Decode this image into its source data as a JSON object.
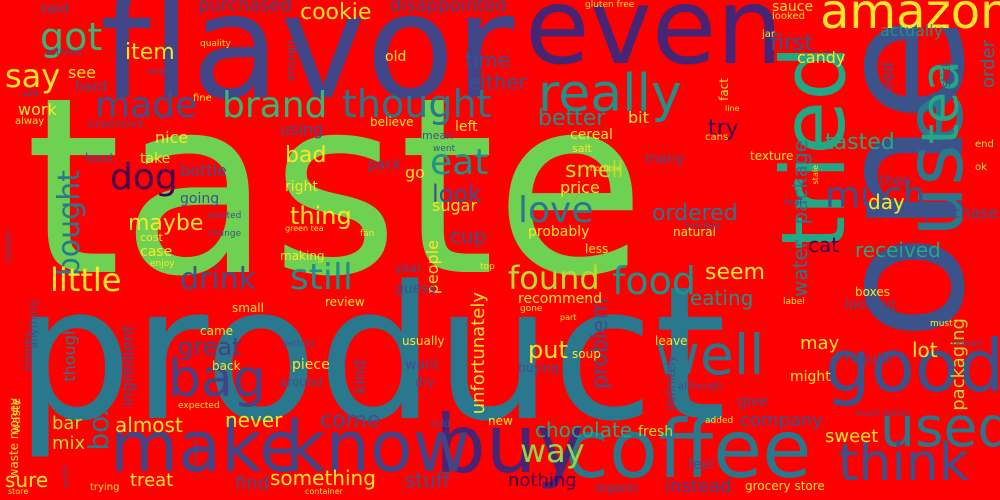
{
  "background_color": "#ff0000",
  "words": [
    {
      "text": "taste",
      "color": "#6fd152"
    },
    {
      "text": "product",
      "color": "#2a788e"
    },
    {
      "text": "one",
      "color": "#3b528b"
    },
    {
      "text": "flavor",
      "color": "#414487"
    },
    {
      "text": "even",
      "color": "#482475"
    },
    {
      "text": "tried",
      "color": "#22a884"
    },
    {
      "text": "use",
      "color": "#2a788e"
    },
    {
      "text": "coffee",
      "color": "#2a788e"
    },
    {
      "text": "buy",
      "color": "#482475"
    },
    {
      "text": "good",
      "color": "#3b528b"
    },
    {
      "text": "make",
      "color": "#414487"
    },
    {
      "text": "know",
      "color": "#414487"
    },
    {
      "text": "tea",
      "color": "#22a884"
    },
    {
      "text": "used",
      "color": "#2a788e"
    },
    {
      "text": "think",
      "color": "#3b528b"
    },
    {
      "text": "amazon",
      "color": "#fde725"
    },
    {
      "text": "really",
      "color": "#21918c"
    },
    {
      "text": "well",
      "color": "#2a788e"
    },
    {
      "text": "bag",
      "color": "#414487"
    },
    {
      "text": "made",
      "color": "#3b528b"
    },
    {
      "text": "brand",
      "color": "#35b779"
    },
    {
      "text": "thought",
      "color": "#2a788e"
    },
    {
      "text": "got",
      "color": "#35b779"
    },
    {
      "text": "say",
      "color": "#fde725"
    },
    {
      "text": "eat",
      "color": "#21918c"
    },
    {
      "text": "much",
      "color": "#3b528b"
    },
    {
      "text": "dog",
      "color": "#440154"
    },
    {
      "text": "love",
      "color": "#2a788e"
    },
    {
      "text": "bought",
      "color": "#2a788e"
    },
    {
      "text": "little",
      "color": "#fde725"
    },
    {
      "text": "drink",
      "color": "#3b528b"
    },
    {
      "text": "still",
      "color": "#21918c"
    },
    {
      "text": "found",
      "color": "#b5de2b"
    },
    {
      "text": "food",
      "color": "#21918c"
    },
    {
      "text": "way",
      "color": "#8fd744"
    },
    {
      "text": "box",
      "color": "#2a788e"
    },
    {
      "text": "great",
      "color": "#414487"
    },
    {
      "text": "item",
      "color": "#fde725"
    },
    {
      "text": "cookie",
      "color": "#fde725"
    },
    {
      "text": "tasted",
      "color": "#22a884"
    },
    {
      "text": "package",
      "color": "#2a788e"
    },
    {
      "text": "water",
      "color": "#2a788e"
    },
    {
      "text": "first",
      "color": "#3b528b"
    },
    {
      "text": "purchased",
      "color": "#414487"
    },
    {
      "text": "disappointed",
      "color": "#414487"
    },
    {
      "text": "time",
      "color": "#3b528b"
    },
    {
      "text": "either",
      "color": "#3b528b"
    },
    {
      "text": "better",
      "color": "#21918c"
    },
    {
      "text": "try",
      "color": "#440154"
    },
    {
      "text": "smell",
      "color": "#b5de2b"
    },
    {
      "text": "look",
      "color": "#3b528b"
    },
    {
      "text": "thing",
      "color": "#fde725"
    },
    {
      "text": "maybe",
      "color": "#fde725"
    },
    {
      "text": "bad",
      "color": "#fde725"
    },
    {
      "text": "ordered",
      "color": "#2a788e"
    },
    {
      "text": "day",
      "color": "#fde725"
    },
    {
      "text": "seem",
      "color": "#fde725"
    },
    {
      "text": "cat",
      "color": "#440154"
    },
    {
      "text": "received",
      "color": "#22a884"
    },
    {
      "text": "eating",
      "color": "#21918c"
    },
    {
      "text": "put",
      "color": "#fde725"
    },
    {
      "text": "problem",
      "color": "#3b528b"
    },
    {
      "text": "come",
      "color": "#3b528b"
    },
    {
      "text": "almost",
      "color": "#fde725"
    },
    {
      "text": "never",
      "color": "#fde725"
    },
    {
      "text": "chocolate",
      "color": "#22a884"
    },
    {
      "text": "company",
      "color": "#3b528b"
    },
    {
      "text": "sweet",
      "color": "#fde725"
    },
    {
      "text": "something",
      "color": "#fde725"
    },
    {
      "text": "stuff",
      "color": "#3b528b"
    },
    {
      "text": "sure",
      "color": "#fde725"
    },
    {
      "text": "mix",
      "color": "#b5de2b"
    },
    {
      "text": "bar",
      "color": "#b5de2b"
    },
    {
      "text": "treat",
      "color": "#fde725"
    },
    {
      "text": "find",
      "color": "#3b528b"
    },
    {
      "text": "nothing",
      "color": "#440154"
    },
    {
      "text": "instead",
      "color": "#414487"
    },
    {
      "text": "lot",
      "color": "#fde725"
    },
    {
      "text": "may",
      "color": "#fde725"
    },
    {
      "text": "order",
      "color": "#2a788e"
    },
    {
      "text": "packaging",
      "color": "#b5de2b"
    },
    {
      "text": "purchase",
      "color": "#3b528b"
    },
    {
      "text": "actually",
      "color": "#21918c"
    },
    {
      "text": "candy",
      "color": "#fde725"
    },
    {
      "text": "need",
      "color": "#3b528b"
    },
    {
      "text": "unfortunately",
      "color": "#fde725"
    },
    {
      "text": "ingredient",
      "color": "#3b528b"
    },
    {
      "text": "though",
      "color": "#2a788e"
    },
    {
      "text": "kind",
      "color": "#3b528b"
    },
    {
      "text": "people",
      "color": "#fde725"
    },
    {
      "text": "cup",
      "color": "#3b528b"
    },
    {
      "text": "sugar",
      "color": "#fde725"
    },
    {
      "text": "price",
      "color": "#fde725"
    },
    {
      "text": "probably",
      "color": "#fde725"
    },
    {
      "text": "many",
      "color": "#3b528b"
    },
    {
      "text": "rather",
      "color": "#3b528b"
    },
    {
      "text": "looking",
      "color": "#3b528b"
    },
    {
      "text": "regular",
      "color": "#3b528b"
    },
    {
      "text": "might",
      "color": "#fde725"
    },
    {
      "text": "recommend",
      "color": "#fde725"
    },
    {
      "text": "guess",
      "color": "#3b528b"
    },
    {
      "text": "want",
      "color": "#3b528b"
    },
    {
      "text": "piece",
      "color": "#fde725"
    },
    {
      "text": "give",
      "color": "#3b528b"
    },
    {
      "text": "feel",
      "color": "#3b528b"
    },
    {
      "text": "fresh",
      "color": "#b5de2b"
    },
    {
      "text": "organic",
      "color": "#3b528b"
    },
    {
      "text": "grocery store",
      "color": "#fde725"
    },
    {
      "text": "work",
      "color": "#fde725"
    },
    {
      "text": "see",
      "color": "#fde725"
    },
    {
      "text": "texture",
      "color": "#fde725"
    },
    {
      "text": "bottle",
      "color": "#3b528b"
    },
    {
      "text": "going",
      "color": "#3b528b"
    },
    {
      "text": "right",
      "color": "#fde725"
    },
    {
      "text": "using",
      "color": "#3b528b"
    },
    {
      "text": "nice",
      "color": "#fde725"
    },
    {
      "text": "take",
      "color": "#fde725"
    },
    {
      "text": "least",
      "color": "#3b528b"
    },
    {
      "text": "case",
      "color": "#fde725"
    },
    {
      "text": "making",
      "color": "#fde725"
    },
    {
      "text": "year",
      "color": "#3b528b"
    },
    {
      "text": "soup",
      "color": "#fde725"
    },
    {
      "text": "pack",
      "color": "#3b528b"
    },
    {
      "text": "go",
      "color": "#fde725"
    },
    {
      "text": "cereal",
      "color": "#fde725"
    },
    {
      "text": "believe",
      "color": "#fde725"
    },
    {
      "text": "left",
      "color": "#fde725"
    },
    {
      "text": "bit",
      "color": "#fde725"
    },
    {
      "text": "old",
      "color": "#fde725"
    },
    {
      "text": "sauce",
      "color": "#fde725"
    },
    {
      "text": "said",
      "color": "#3b528b"
    },
    {
      "text": "hard",
      "color": "#3b528b"
    },
    {
      "text": "came",
      "color": "#fde725"
    },
    {
      "text": "small",
      "color": "#fde725"
    },
    {
      "text": "around",
      "color": "#3b528b"
    },
    {
      "text": "dry",
      "color": "#3b528b"
    },
    {
      "text": "less",
      "color": "#fde725"
    },
    {
      "text": "natural",
      "color": "#fde725"
    },
    {
      "text": "boxes",
      "color": "#fde725"
    },
    {
      "text": "usually",
      "color": "#fde725"
    },
    {
      "text": "buying",
      "color": "#3b528b"
    },
    {
      "text": "leave",
      "color": "#fde725"
    },
    {
      "text": "back",
      "color": "#fde725"
    },
    {
      "text": "review",
      "color": "#fde725"
    },
    {
      "text": "money",
      "color": "#3b528b"
    },
    {
      "text": "waste",
      "color": "#fde725"
    },
    {
      "text": "waste money",
      "color": "#fde725"
    },
    {
      "text": "anything",
      "color": "#3b528b"
    },
    {
      "text": "definitely",
      "color": "#3b528b"
    },
    {
      "text": "new",
      "color": "#fde725"
    },
    {
      "text": "expensive",
      "color": "#3b528b"
    },
    {
      "text": "quality",
      "color": "#fde725"
    },
    {
      "text": "bean",
      "color": "#3b528b"
    },
    {
      "text": "fine",
      "color": "#fde725"
    },
    {
      "text": "mean",
      "color": "#3b528b"
    },
    {
      "text": "salt",
      "color": "#fde725"
    },
    {
      "text": "fact",
      "color": "#fde725"
    },
    {
      "text": "jar",
      "color": "#fde725"
    },
    {
      "text": "looked",
      "color": "#fde725"
    },
    {
      "text": "stick",
      "color": "#3b528b"
    },
    {
      "text": "end",
      "color": "#fde725"
    },
    {
      "text": "ok",
      "color": "#fde725"
    },
    {
      "text": "real",
      "color": "#3b528b"
    },
    {
      "text": "cans",
      "color": "#fde725"
    },
    {
      "text": "stale",
      "color": "#fde725"
    },
    {
      "text": "gluten free",
      "color": "#fde725"
    },
    {
      "text": "enough",
      "color": "#3b528b"
    },
    {
      "text": "without",
      "color": "#3b528b"
    },
    {
      "text": "alway",
      "color": "#fde725"
    },
    {
      "text": "add",
      "color": "#3b528b"
    },
    {
      "text": "cost",
      "color": "#fde725"
    },
    {
      "text": "enjoy",
      "color": "#fde725"
    },
    {
      "text": "contain",
      "color": "#3b528b"
    },
    {
      "text": "green tea",
      "color": "#fde725"
    },
    {
      "text": "horrible",
      "color": "#fde725"
    },
    {
      "text": "terrible",
      "color": "#3b528b"
    },
    {
      "text": "top",
      "color": "#fde725"
    },
    {
      "text": "part",
      "color": "#fde725"
    },
    {
      "text": "label",
      "color": "#fde725"
    },
    {
      "text": "must",
      "color": "#fde725"
    },
    {
      "text": "expected",
      "color": "#fde725"
    },
    {
      "text": "added",
      "color": "#fde725"
    },
    {
      "text": "much better",
      "color": "#3b528b"
    },
    {
      "text": "noodle",
      "color": "#3b528b"
    },
    {
      "text": "worth",
      "color": "#3b528b"
    },
    {
      "text": "store",
      "color": "#fde725"
    },
    {
      "text": "container",
      "color": "#fde725"
    },
    {
      "text": "trying",
      "color": "#fde725"
    },
    {
      "text": "getting",
      "color": "#3b528b"
    },
    {
      "text": "reason",
      "color": "#3b528b"
    },
    {
      "text": "fan",
      "color": "#fde725"
    },
    {
      "text": "change",
      "color": "#3b528b"
    },
    {
      "text": "wanted",
      "color": "#3b528b"
    },
    {
      "text": "went",
      "color": "#3b528b"
    },
    {
      "text": "line",
      "color": "#fde725"
    },
    {
      "text": "although",
      "color": "#3b528b"
    },
    {
      "text": "sold",
      "color": "#3b528b"
    },
    {
      "text": "gone",
      "color": "#fde725"
    }
  ]
}
